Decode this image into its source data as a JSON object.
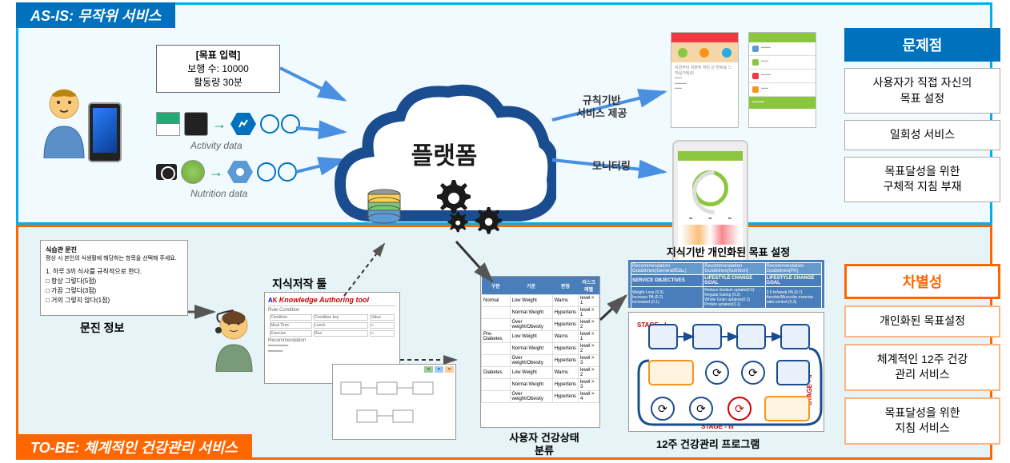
{
  "asis": {
    "section_label": "AS-IS: 무작위 서비스",
    "goal_box": {
      "line1": "[목표 입력]",
      "line2": "보행 수: 10000",
      "line3": "활동량 30분"
    },
    "activity_label": "Activity data",
    "nutrition_label": "Nutrition data",
    "platform_title": "플랫폼",
    "arrow_rule_label": "규칙기반\n서비스 제공",
    "arrow_monitor_label": "모니터링",
    "problems_header": "문제점",
    "problems": [
      "사용자가 직접 자신의\n목표 설정",
      "일회성 서비스",
      "목표달성을 위한\n구체적 지침 부재"
    ]
  },
  "tobe": {
    "section_label": "TO-BE: 체계적인 건강관리 서비스",
    "questionnaire": {
      "title": "식습관 문진",
      "subtitle": "평상 시 본인의 식생활에 해당하는 항목을 선택해 주세요.",
      "q1": "1. 하루 3끼 식사를 규칙적으로 한다.",
      "opts": [
        "□ 항상 그렇다(5점)",
        "□ 가끔 그렇다(3점)",
        "□ 거의 그렇지 않다(1점)"
      ]
    },
    "q_label": "문진 정보",
    "authoring_label": "지식저작 툴",
    "authoring_tool_title": "Knowledge Authoring tool",
    "classify_label": "사용자 건강상태\n분류",
    "classify_headers": [
      "구분",
      "기준",
      "판정",
      "리스크레벨"
    ],
    "classify_rows": [
      [
        "Normal",
        "Low Weight",
        "Warns",
        "level < 1"
      ],
      [
        "",
        "Normal Weight",
        "Hypertens",
        "level < 1"
      ],
      [
        "",
        "Over weight/Obesity",
        "Hypertens",
        "level > 2"
      ],
      [
        "Pre-Diabetes",
        "Low Weight",
        "Warns",
        "level < 1"
      ],
      [
        "",
        "Normal Weight",
        "Hypertens",
        "level > 2"
      ],
      [
        "",
        "Over weight/Obesity",
        "Hypertens",
        "level > 3"
      ],
      [
        "Diabetes",
        "Low Weight",
        "Warns",
        "level > 2"
      ],
      [
        "",
        "Normal Weight",
        "Hypertens",
        "level > 3"
      ],
      [
        "",
        "Over weight/Obesity",
        "Hypertens",
        "level > 4"
      ]
    ],
    "knowledge_title": "지식기반 개인화된 목표 설정",
    "guidelines": {
      "h1": "Recommendation Guidelines(General/Edu.)",
      "h2": "Recommendation Guidelines(Nutrition)",
      "h3": "Recommendation Guidelines(PA)",
      "r1": "SERVICE OBJECTIVES",
      "r2": "LIFESTYLE CHANGE GOAL",
      "r3": "LIFESTYLE CHANGE GOAL"
    },
    "program_label": "12주 건강관리 프로그램",
    "diff_header": "차별성",
    "diffs": [
      "개인화된 목표설정",
      "체계적인 12주 건강\n관리 서비스",
      "목표달성을 위한\n지침 서비스"
    ]
  },
  "colors": {
    "asis_border": "#00aeef",
    "asis_label_bg": "#0071bc",
    "tobe_border": "#ff6600",
    "cloud_stroke": "#1a4d8f",
    "green": "#8cc63f",
    "red": "#ee3a43",
    "blue_arrow": "#4a90e2"
  }
}
